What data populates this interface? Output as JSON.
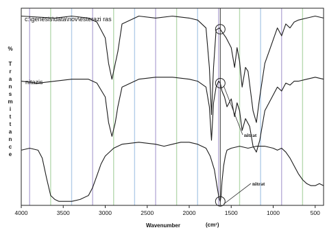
{
  "chart_data": {
    "type": "line",
    "title": "",
    "xlabel": "Wavenumber",
    "xlabel_unit": "(cm¹)",
    "ylabel": "% Transmittance",
    "xlim": [
      4000,
      400
    ],
    "x_ticks": [
      4000,
      3500,
      3000,
      2500,
      2000,
      1500,
      1000,
      500
    ],
    "x_tick_labels": [
      "4000",
      "3500",
      "3000",
      "2500",
      "2000",
      "1500",
      "1000",
      "500"
    ],
    "grid": true,
    "marker_line_x": 1630,
    "series": [
      {
        "name": "c:\\genesis\\data\\nov\\esterazi ras",
        "x": [
          4000,
          3600,
          3400,
          3200,
          3100,
          3000,
          2960,
          2920,
          2880,
          2850,
          2800,
          2600,
          2400,
          2200,
          2000,
          1900,
          1800,
          1760,
          1735,
          1710,
          1680,
          1640,
          1610,
          1560,
          1500,
          1460,
          1430,
          1400,
          1370,
          1330,
          1300,
          1240,
          1200,
          1160,
          1100,
          1050,
          1000,
          950,
          900,
          850,
          800,
          750,
          700,
          600,
          500,
          400
        ],
        "y": [
          96,
          95,
          96,
          95,
          93,
          85,
          72,
          64,
          72,
          78,
          92,
          96,
          95,
          96,
          95,
          94,
          90,
          70,
          46,
          70,
          89,
          90,
          88,
          85,
          80,
          70,
          80,
          73,
          60,
          70,
          68,
          48,
          42,
          55,
          72,
          78,
          84,
          90,
          86,
          92,
          90,
          93,
          94,
          95,
          96,
          95
        ]
      },
      {
        "name": "nitazis",
        "x": [
          4000,
          3800,
          3600,
          3400,
          3200,
          3100,
          3000,
          2960,
          2920,
          2880,
          2850,
          2800,
          2600,
          2400,
          2200,
          2000,
          1900,
          1800,
          1760,
          1735,
          1710,
          1680,
          1650,
          1630,
          1610,
          1580,
          1550,
          1500,
          1460,
          1430,
          1400,
          1370,
          1330,
          1280,
          1240,
          1200,
          1160,
          1100,
          1050,
          1000,
          950,
          900,
          850,
          800,
          750,
          700,
          600,
          500,
          400
        ],
        "y": [
          63,
          62,
          63,
          64,
          64,
          62,
          55,
          42,
          35,
          42,
          50,
          60,
          64,
          65,
          65,
          64,
          63,
          60,
          50,
          33,
          52,
          60,
          63,
          62,
          58,
          55,
          50,
          54,
          45,
          52,
          48,
          38,
          44,
          40,
          30,
          27,
          33,
          48,
          52,
          56,
          60,
          58,
          62,
          61,
          63,
          63,
          64,
          65,
          64
        ]
      },
      {
        "name": "",
        "x": [
          4000,
          3900,
          3800,
          3750,
          3700,
          3650,
          3600,
          3550,
          3500,
          3400,
          3300,
          3200,
          3150,
          3100,
          3050,
          3000,
          2900,
          2800,
          2600,
          2400,
          2300,
          2200,
          2100,
          2000,
          1900,
          1800,
          1750,
          1700,
          1670,
          1650,
          1640,
          1630,
          1620,
          1610,
          1590,
          1570,
          1550,
          1500,
          1400,
          1300,
          1200,
          1100,
          1000,
          950,
          900,
          850,
          800,
          750,
          700,
          650,
          600,
          550,
          500,
          450,
          400
        ],
        "y": [
          28,
          29,
          28,
          24,
          14,
          5,
          3,
          2,
          2,
          2,
          3,
          5,
          9,
          15,
          21,
          25,
          29,
          31,
          32,
          31,
          30,
          31,
          32,
          32,
          31,
          29,
          25,
          18,
          10,
          5,
          3,
          2,
          5,
          12,
          20,
          25,
          28,
          29,
          30,
          29,
          30,
          30,
          29,
          28,
          29,
          27,
          24,
          20,
          16,
          13,
          11,
          10,
          10,
          11,
          10
        ]
      }
    ],
    "annotations": [
      {
        "text": "nitrat",
        "x": 1630,
        "series": 1
      },
      {
        "text": "nitrat",
        "x": 1630,
        "series": 2
      }
    ],
    "colors": {
      "line": "#1a1a1a",
      "grid_purple": "#b9aed8",
      "grid_green": "#b7d9b0",
      "grid_blue": "#b3cde8"
    }
  }
}
